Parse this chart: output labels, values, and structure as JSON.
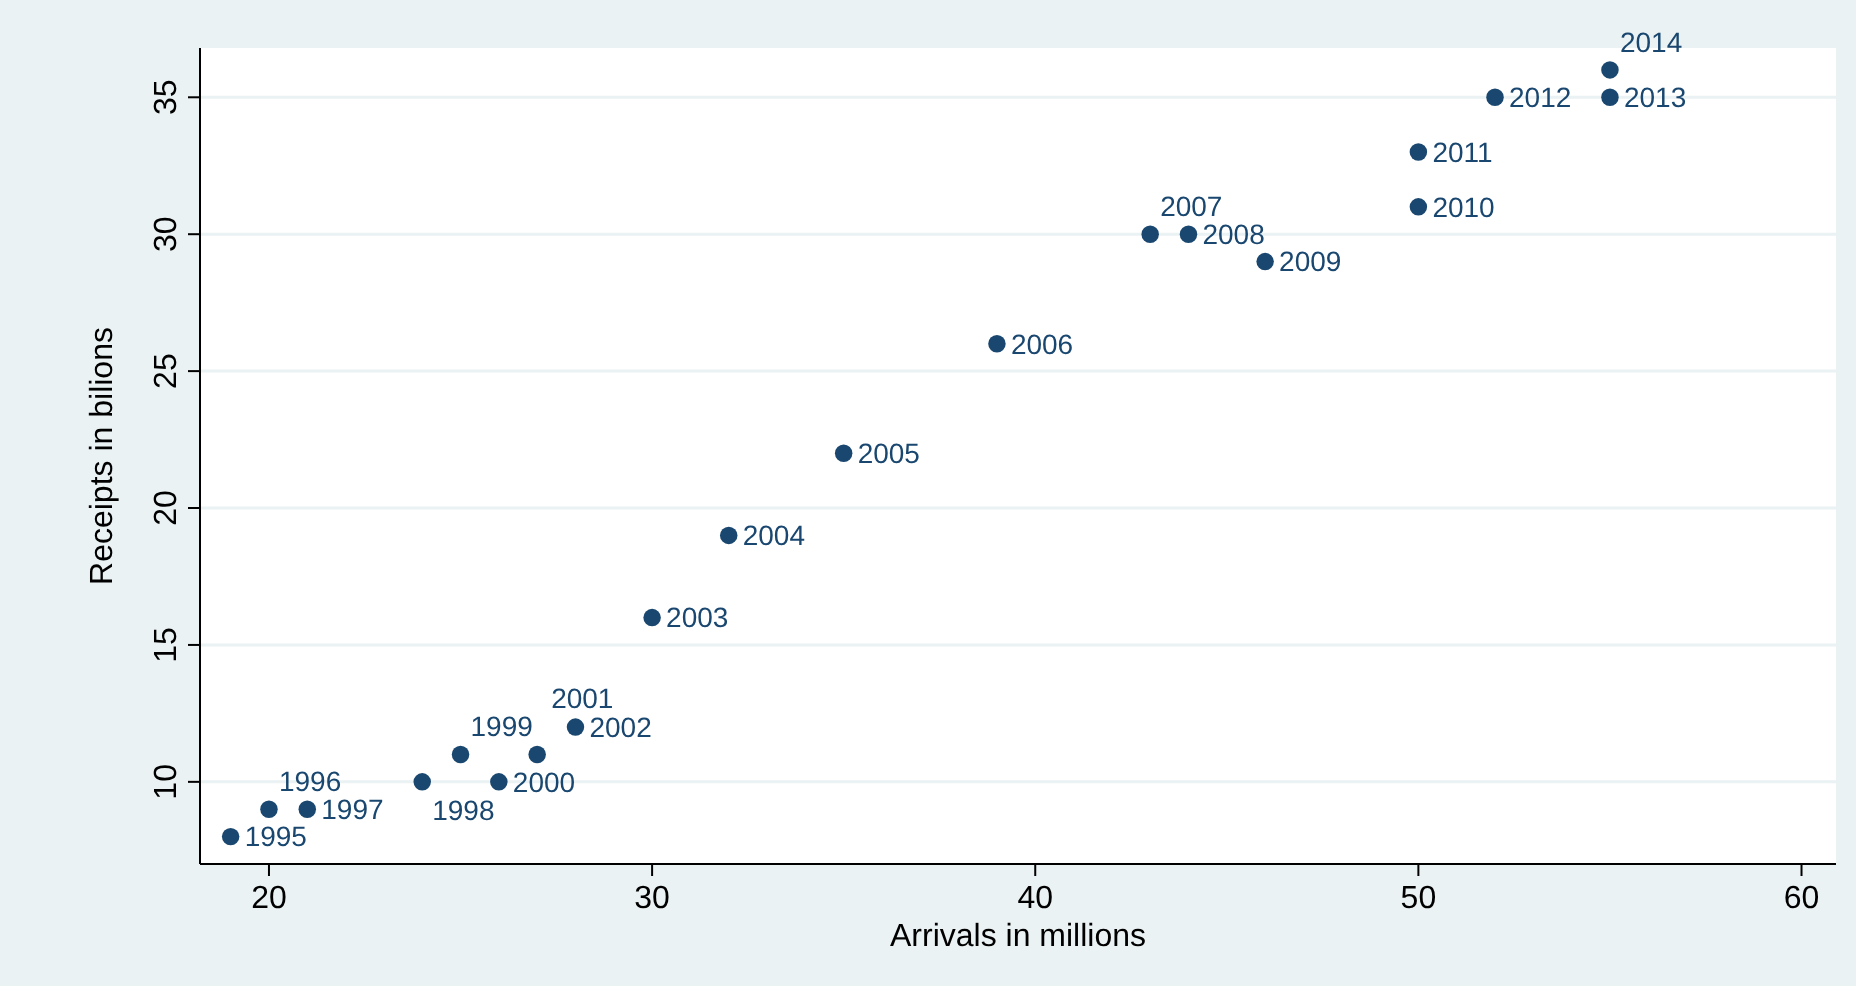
{
  "chart_data": {
    "type": "scatter",
    "xlabel": "Arrivals in millions",
    "ylabel": "Receipts in bilions",
    "x": [
      19,
      20,
      21,
      24,
      25,
      26,
      27,
      28,
      30,
      32,
      35,
      39,
      43,
      44,
      46,
      50,
      50,
      52,
      55,
      55
    ],
    "series": [
      {
        "color": "#1a476f",
        "values": [
          8,
          9,
          9,
          10,
          11,
          10,
          11,
          12,
          16,
          19,
          22,
          26,
          30,
          30,
          29,
          31,
          33,
          35,
          35,
          36
        ]
      }
    ],
    "annotations": [
      {
        "text": "1995",
        "x": 19,
        "y": 8
      },
      {
        "text": "1996",
        "x": 20,
        "y": 9
      },
      {
        "text": "1997",
        "x": 21,
        "y": 9
      },
      {
        "text": "1998",
        "x": 24,
        "y": 10
      },
      {
        "text": "1999",
        "x": 25,
        "y": 11
      },
      {
        "text": "2000",
        "x": 26,
        "y": 10
      },
      {
        "text": "2001",
        "x": 27,
        "y": 11
      },
      {
        "text": "2002",
        "x": 28,
        "y": 12
      },
      {
        "text": "2003",
        "x": 30,
        "y": 16
      },
      {
        "text": "2004",
        "x": 32,
        "y": 19
      },
      {
        "text": "2005",
        "x": 35,
        "y": 22
      },
      {
        "text": "2006",
        "x": 39,
        "y": 26
      },
      {
        "text": "2007",
        "x": 43,
        "y": 30
      },
      {
        "text": "2008",
        "x": 44,
        "y": 30
      },
      {
        "text": "2009",
        "x": 46,
        "y": 29
      },
      {
        "text": "2010",
        "x": 50,
        "y": 31
      },
      {
        "text": "2011",
        "x": 50,
        "y": 33
      },
      {
        "text": "2012",
        "x": 52,
        "y": 35
      },
      {
        "text": "2013",
        "x": 55,
        "y": 35
      },
      {
        "text": "2014",
        "x": 55,
        "y": 36
      }
    ],
    "xlim": [
      18.2,
      60.9
    ],
    "ylim": [
      7,
      36.8
    ],
    "xticks": [
      20,
      30,
      40,
      50,
      60
    ],
    "yticks": [
      10,
      15,
      20,
      25,
      30,
      35
    ],
    "grid": "y",
    "marker": "circle"
  }
}
